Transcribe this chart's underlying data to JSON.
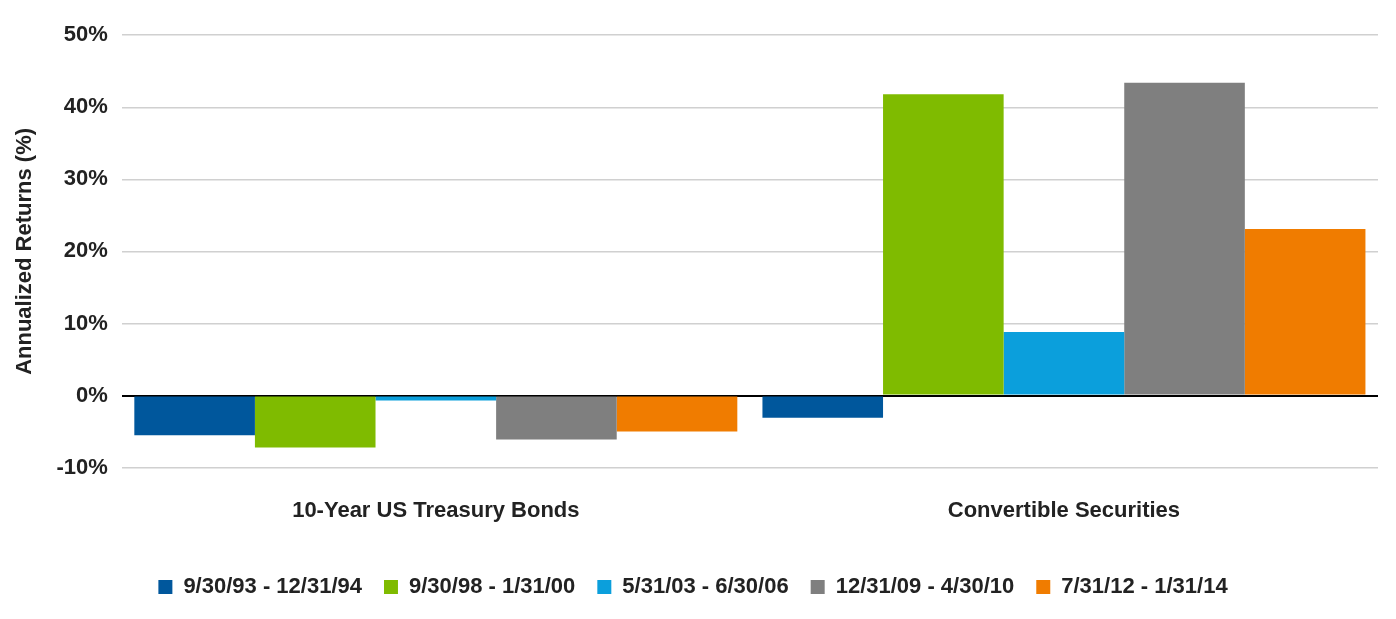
{
  "chart_data": {
    "type": "bar",
    "ylabel": "Annualized Returns (%)",
    "categories": [
      "10-Year US Treasury Bonds",
      "Convertible Securities"
    ],
    "series": [
      {
        "name": "9/30/93 - 12/31/94",
        "color": "#00579c",
        "values": [
          -5.5,
          -3.1
        ]
      },
      {
        "name": "9/30/98 - 1/31/00",
        "color": "#7fbb00",
        "values": [
          -7.2,
          41.8
        ]
      },
      {
        "name": "5/31/03 - 6/30/06",
        "color": "#0b9fdc",
        "values": [
          -0.7,
          8.8
        ]
      },
      {
        "name": "12/31/09 - 4/30/10",
        "color": "#7f7f7f",
        "values": [
          -6.1,
          43.4
        ]
      },
      {
        "name": "7/31/12 - 1/31/14",
        "color": "#f07c00",
        "values": [
          -5.0,
          23.1
        ]
      }
    ],
    "ylim": [
      -10,
      50
    ],
    "yticks": [
      {
        "value": -10,
        "label": "-10%"
      },
      {
        "value": 0,
        "label": "0%"
      },
      {
        "value": 10,
        "label": "10%"
      },
      {
        "value": 20,
        "label": "20%"
      },
      {
        "value": 30,
        "label": "30%"
      },
      {
        "value": 40,
        "label": "40%"
      },
      {
        "value": 50,
        "label": "50%"
      }
    ],
    "grid": "y",
    "legend": "bottom"
  }
}
